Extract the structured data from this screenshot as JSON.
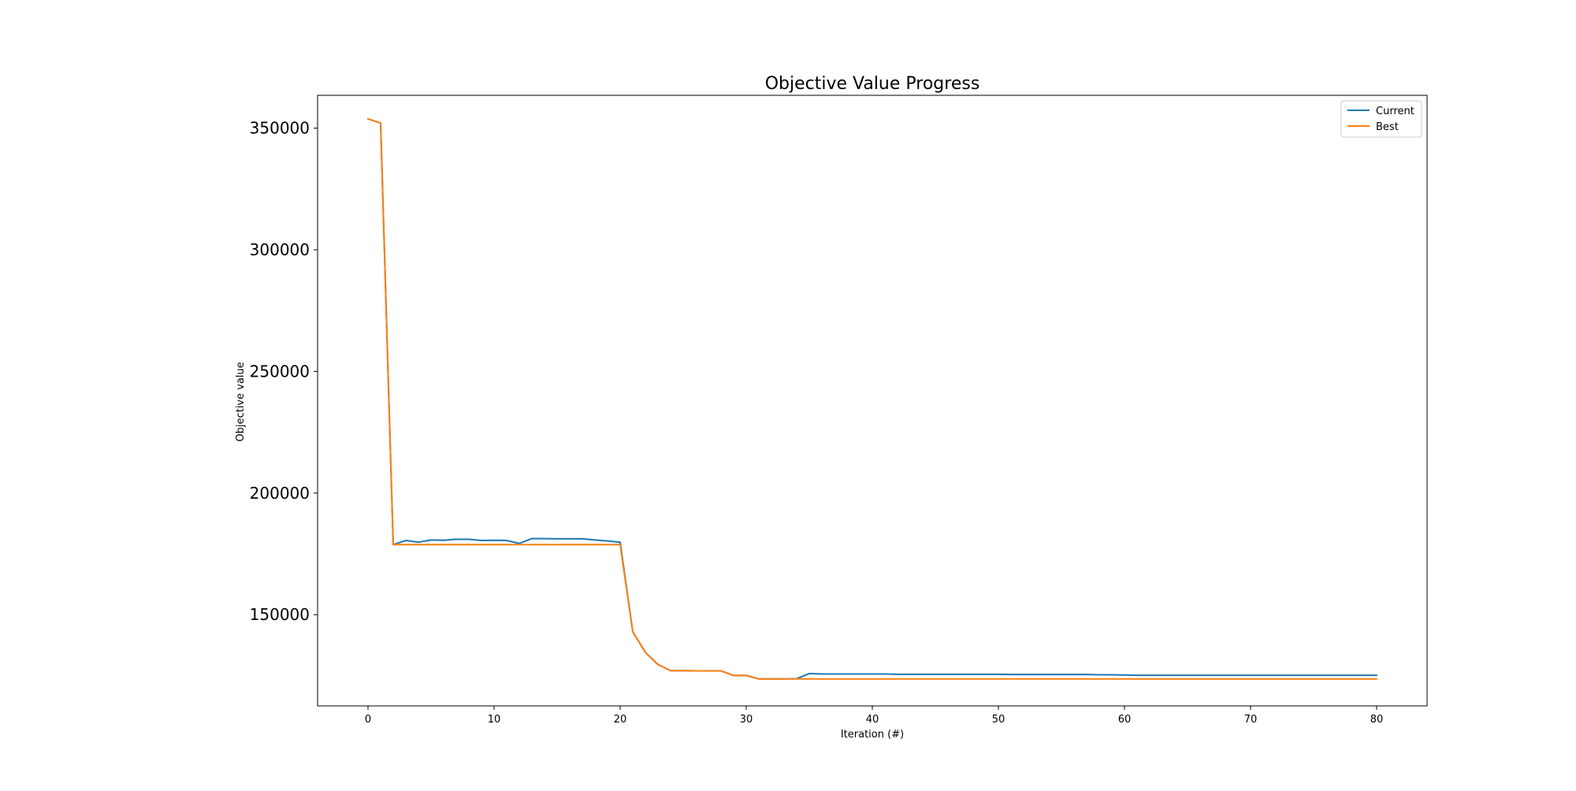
{
  "chart_data": {
    "type": "line",
    "title": "Objective Value Progress",
    "xlabel": "Iteration (#)",
    "ylabel": "Objective value",
    "xlim": [
      -4,
      84
    ],
    "ylim": [
      112500,
      363500
    ],
    "xticks": [
      0,
      10,
      20,
      30,
      40,
      50,
      60,
      70,
      80
    ],
    "yticks": [
      150000,
      200000,
      250000,
      300000,
      350000
    ],
    "grid": false,
    "legend_position": "top-right",
    "x": [
      0,
      1,
      2,
      3,
      4,
      5,
      6,
      7,
      8,
      9,
      10,
      11,
      12,
      13,
      14,
      15,
      16,
      17,
      18,
      19,
      20,
      21,
      22,
      23,
      24,
      25,
      26,
      27,
      28,
      29,
      30,
      31,
      32,
      33,
      34,
      35,
      36,
      37,
      38,
      39,
      40,
      41,
      42,
      43,
      44,
      45,
      46,
      47,
      48,
      49,
      50,
      51,
      52,
      53,
      54,
      55,
      56,
      57,
      58,
      59,
      60,
      61,
      62,
      63,
      64,
      65,
      66,
      67,
      68,
      69,
      70,
      71,
      72,
      73,
      74,
      75,
      76,
      77,
      78,
      79,
      80
    ],
    "series": [
      {
        "name": "Current",
        "color": "#1f77b4",
        "values": [
          353800,
          352100,
          178800,
          180500,
          179800,
          180700,
          180600,
          181000,
          181000,
          180500,
          180600,
          180500,
          179300,
          181300,
          181300,
          181200,
          181200,
          181200,
          180700,
          180300,
          179800,
          143000,
          134500,
          129500,
          127000,
          127000,
          126900,
          126900,
          126900,
          125000,
          125000,
          123600,
          123600,
          123600,
          123700,
          125800,
          125600,
          125600,
          125600,
          125600,
          125600,
          125600,
          125500,
          125500,
          125500,
          125500,
          125500,
          125500,
          125500,
          125500,
          125500,
          125400,
          125400,
          125400,
          125400,
          125400,
          125400,
          125400,
          125300,
          125300,
          125200,
          125100,
          125100,
          125100,
          125100,
          125100,
          125100,
          125100,
          125100,
          125100,
          125100,
          125100,
          125100,
          125100,
          125100,
          125100,
          125100,
          125100,
          125100,
          125100,
          125100
        ]
      },
      {
        "name": "Best",
        "color": "#ff7f0e",
        "values": [
          353800,
          352100,
          178800,
          178800,
          178800,
          178800,
          178800,
          178800,
          178800,
          178800,
          178800,
          178800,
          178800,
          178800,
          178800,
          178800,
          178800,
          178800,
          178800,
          178800,
          178800,
          143000,
          134500,
          129500,
          127000,
          127000,
          126900,
          126900,
          126900,
          125000,
          125000,
          123600,
          123600,
          123600,
          123600,
          123600,
          123600,
          123600,
          123600,
          123600,
          123600,
          123600,
          123600,
          123600,
          123600,
          123600,
          123600,
          123600,
          123600,
          123600,
          123600,
          123600,
          123600,
          123600,
          123600,
          123600,
          123600,
          123600,
          123600,
          123600,
          123600,
          123600,
          123600,
          123600,
          123600,
          123600,
          123600,
          123600,
          123600,
          123600,
          123600,
          123600,
          123600,
          123600,
          123600,
          123600,
          123600,
          123600,
          123600,
          123600,
          123600
        ]
      }
    ]
  }
}
